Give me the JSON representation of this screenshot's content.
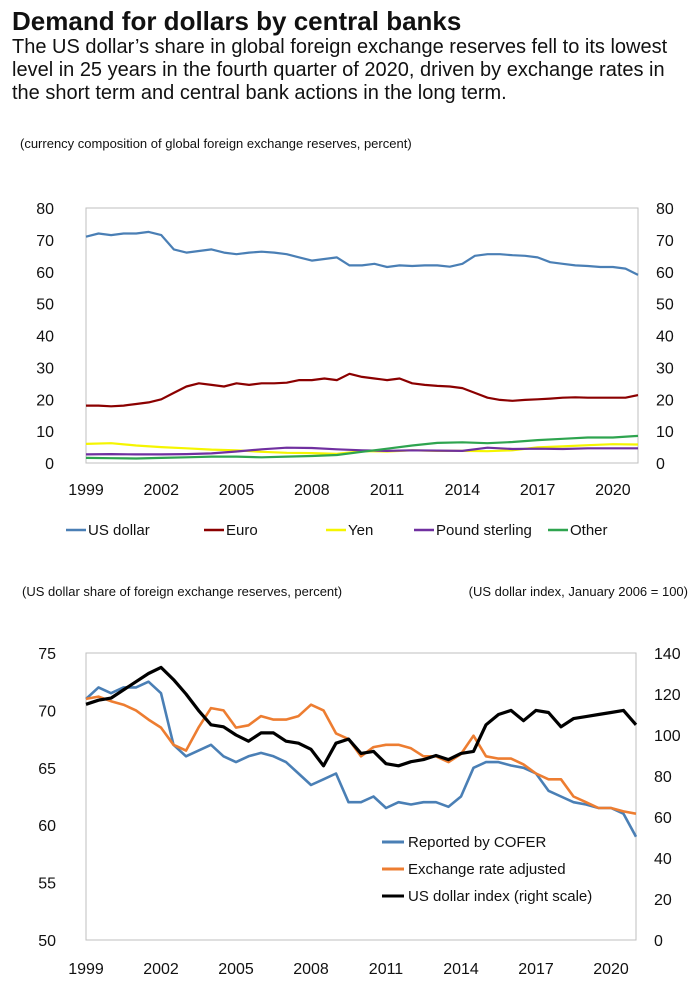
{
  "title": "Demand for dollars by central banks",
  "subtitle": "The US dollar’s share in global foreign exchange reserves fell to its lowest level in 25 years in the fourth quarter of 2020, driven by exchange rates in the short term and central bank actions in the long term.",
  "note": "(currency composition of global foreign exchange reserves, percent)",
  "note2_left": "(US dollar share of foreign exchange reserves, percent)",
  "note2_right": "(US dollar index, January 2006 = 100)",
  "chart_data": [
    {
      "type": "line",
      "title": "",
      "xlabel": "",
      "ylabel": "",
      "xlim": [
        1999,
        2021
      ],
      "ylim": [
        0,
        80
      ],
      "yticks": [
        0,
        10,
        20,
        30,
        40,
        50,
        60,
        70,
        80
      ],
      "xticks": [
        1999,
        2002,
        2005,
        2008,
        2011,
        2014,
        2017,
        2020
      ],
      "grid": false,
      "legend": "bottom",
      "series": [
        {
          "name": "US dollar",
          "color": "#4a7fb5",
          "x": [
            1999,
            1999.5,
            2000,
            2000.5,
            2001,
            2001.5,
            2002,
            2002.5,
            2003,
            2003.5,
            2004,
            2004.5,
            2005,
            2005.5,
            2006,
            2006.5,
            2007,
            2007.5,
            2008,
            2008.5,
            2009,
            2009.5,
            2010,
            2010.5,
            2011,
            2011.5,
            2012,
            2012.5,
            2013,
            2013.5,
            2014,
            2014.5,
            2015,
            2015.5,
            2016,
            2016.5,
            2017,
            2017.5,
            2018,
            2018.5,
            2019,
            2019.5,
            2020,
            2020.5,
            2021
          ],
          "y": [
            71,
            72,
            71.5,
            72,
            72,
            72.5,
            71.5,
            67,
            66,
            66.5,
            67,
            66,
            65.5,
            66,
            66.3,
            66,
            65.5,
            64.5,
            63.5,
            64,
            64.5,
            62,
            62,
            62.5,
            61.5,
            62,
            61.8,
            62,
            62,
            61.6,
            62.5,
            65,
            65.5,
            65.5,
            65.2,
            65,
            64.5,
            63,
            62.5,
            62,
            61.8,
            61.5,
            61.5,
            61,
            59
          ]
        },
        {
          "name": "Euro",
          "color": "#8b0000",
          "x": [
            1999,
            1999.5,
            2000,
            2000.5,
            2001,
            2001.5,
            2002,
            2002.5,
            2003,
            2003.5,
            2004,
            2004.5,
            2005,
            2005.5,
            2006,
            2006.5,
            2007,
            2007.5,
            2008,
            2008.5,
            2009,
            2009.5,
            2010,
            2010.5,
            2011,
            2011.5,
            2012,
            2012.5,
            2013,
            2013.5,
            2014,
            2014.5,
            2015,
            2015.5,
            2016,
            2016.5,
            2017,
            2017.5,
            2018,
            2018.5,
            2019,
            2019.5,
            2020,
            2020.5,
            2021
          ],
          "y": [
            18,
            18,
            17.8,
            18,
            18.5,
            19,
            20,
            22,
            24,
            25,
            24.5,
            24,
            25,
            24.5,
            25,
            25,
            25.2,
            26,
            26,
            26.5,
            26,
            28,
            27,
            26.5,
            26,
            26.5,
            25,
            24.5,
            24.2,
            24,
            23.5,
            22,
            20.5,
            19.8,
            19.5,
            19.8,
            20,
            20.2,
            20.5,
            20.6,
            20.5,
            20.5,
            20.5,
            20.5,
            21.3
          ]
        },
        {
          "name": "Yen",
          "color": "#f5f500",
          "x": [
            1999,
            2000,
            2001,
            2002,
            2003,
            2004,
            2005,
            2006,
            2007,
            2008,
            2009,
            2010,
            2011,
            2012,
            2013,
            2014,
            2015,
            2016,
            2017,
            2018,
            2019,
            2020,
            2021
          ],
          "y": [
            6,
            6.2,
            5.5,
            5,
            4.6,
            4.2,
            4,
            3.5,
            3.2,
            3.1,
            2.9,
            3.7,
            3.6,
            4,
            3.8,
            3.8,
            3.7,
            4,
            4.9,
            5.2,
            5.6,
            5.9,
            5.8
          ]
        },
        {
          "name": "Pound sterling",
          "color": "#7030a0",
          "x": [
            1999,
            2000,
            2001,
            2002,
            2003,
            2004,
            2005,
            2006,
            2007,
            2008,
            2009,
            2010,
            2011,
            2012,
            2013,
            2014,
            2015,
            2016,
            2017,
            2018,
            2019,
            2020,
            2021
          ],
          "y": [
            2.7,
            2.8,
            2.7,
            2.7,
            2.8,
            3,
            3.6,
            4.3,
            4.8,
            4.7,
            4.3,
            4,
            3.8,
            4,
            3.9,
            3.8,
            4.8,
            4.4,
            4.5,
            4.4,
            4.6,
            4.6,
            4.6
          ]
        },
        {
          "name": "Other",
          "color": "#2ea44f",
          "x": [
            1999,
            2000,
            2001,
            2002,
            2003,
            2004,
            2005,
            2006,
            2007,
            2008,
            2009,
            2010,
            2011,
            2012,
            2013,
            2014,
            2015,
            2016,
            2017,
            2018,
            2019,
            2020,
            2021
          ],
          "y": [
            1.6,
            1.5,
            1.4,
            1.6,
            1.8,
            2,
            2,
            1.8,
            2,
            2.2,
            2.5,
            3.5,
            4.5,
            5.5,
            6.3,
            6.5,
            6.2,
            6.6,
            7.2,
            7.6,
            8,
            8,
            8.5
          ]
        }
      ]
    },
    {
      "type": "line",
      "title": "",
      "xlabel": "",
      "ylabel": "",
      "xlim": [
        1999,
        2021
      ],
      "ylim": [
        50,
        75
      ],
      "yticks": [
        50,
        55,
        60,
        65,
        70,
        75
      ],
      "y2lim": [
        0,
        140
      ],
      "y2ticks": [
        0,
        20,
        40,
        60,
        80,
        100,
        120,
        140
      ],
      "xticks": [
        1999,
        2002,
        2005,
        2008,
        2011,
        2014,
        2017,
        2020
      ],
      "grid": false,
      "legend": "bottom-right",
      "series": [
        {
          "name": "Reported by COFER",
          "color": "#4a7fb5",
          "axis": "left",
          "x": [
            1999,
            1999.5,
            2000,
            2000.5,
            2001,
            2001.5,
            2002,
            2002.5,
            2003,
            2003.5,
            2004,
            2004.5,
            2005,
            2005.5,
            2006,
            2006.5,
            2007,
            2007.5,
            2008,
            2008.5,
            2009,
            2009.5,
            2010,
            2010.5,
            2011,
            2011.5,
            2012,
            2012.5,
            2013,
            2013.5,
            2014,
            2014.5,
            2015,
            2015.5,
            2016,
            2016.5,
            2017,
            2017.5,
            2018,
            2018.5,
            2019,
            2019.5,
            2020,
            2020.5,
            2021
          ],
          "y": [
            71,
            72,
            71.5,
            72,
            72,
            72.5,
            71.5,
            67,
            66,
            66.5,
            67,
            66,
            65.5,
            66,
            66.3,
            66,
            65.5,
            64.5,
            63.5,
            64,
            64.5,
            62,
            62,
            62.5,
            61.5,
            62,
            61.8,
            62,
            62,
            61.6,
            62.5,
            65,
            65.5,
            65.5,
            65.2,
            65,
            64.5,
            63,
            62.5,
            62,
            61.8,
            61.5,
            61.5,
            61,
            59
          ]
        },
        {
          "name": "Exchange rate adjusted",
          "color": "#ed7d31",
          "axis": "left",
          "x": [
            1999,
            1999.5,
            2000,
            2000.5,
            2001,
            2001.5,
            2002,
            2002.5,
            2003,
            2003.5,
            2004,
            2004.5,
            2005,
            2005.5,
            2006,
            2006.5,
            2007,
            2007.5,
            2008,
            2008.5,
            2009,
            2009.5,
            2010,
            2010.5,
            2011,
            2011.5,
            2012,
            2012.5,
            2013,
            2013.5,
            2014,
            2014.5,
            2015,
            2015.5,
            2016,
            2016.5,
            2017,
            2017.5,
            2018,
            2018.5,
            2019,
            2019.5,
            2020,
            2020.5,
            2021
          ],
          "y": [
            71,
            71.2,
            70.8,
            70.5,
            70,
            69.2,
            68.5,
            67,
            66.5,
            68.5,
            70.2,
            70,
            68.5,
            68.7,
            69.5,
            69.2,
            69.2,
            69.5,
            70.5,
            70,
            68,
            67.5,
            66,
            66.8,
            67,
            67,
            66.7,
            66,
            66,
            65.5,
            66.2,
            67.8,
            66,
            65.8,
            65.8,
            65.3,
            64.5,
            64,
            64,
            62.5,
            62,
            61.5,
            61.5,
            61.2,
            61
          ]
        },
        {
          "name": "US dollar index (right scale)",
          "color": "#000000",
          "axis": "right",
          "x": [
            1999,
            1999.5,
            2000,
            2000.5,
            2001,
            2001.5,
            2002,
            2002.5,
            2003,
            2003.5,
            2004,
            2004.5,
            2005,
            2005.5,
            2006,
            2006.5,
            2007,
            2007.5,
            2008,
            2008.5,
            2009,
            2009.5,
            2010,
            2010.5,
            2011,
            2011.5,
            2012,
            2012.5,
            2013,
            2013.5,
            2014,
            2014.5,
            2015,
            2015.5,
            2016,
            2016.5,
            2017,
            2017.5,
            2018,
            2018.5,
            2019,
            2019.5,
            2020,
            2020.5,
            2021
          ],
          "y": [
            115,
            117,
            118,
            122,
            126,
            130,
            133,
            127,
            120,
            112,
            105,
            104,
            100,
            97,
            101,
            101,
            97,
            96,
            93,
            85,
            96,
            98,
            91,
            92,
            86,
            85,
            87,
            88,
            90,
            88,
            91,
            92,
            105,
            110,
            112,
            107,
            112,
            111,
            104,
            108,
            109,
            110,
            111,
            112,
            105
          ]
        }
      ]
    }
  ]
}
